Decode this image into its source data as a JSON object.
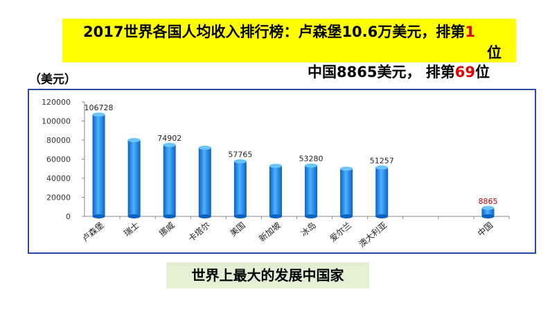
{
  "header": {
    "title_text": "2017世界各国人均收入排行榜：卢森堡10.6万美元，排第",
    "title_rank": "1",
    "title_suffix": "位",
    "china_text": "中国8865美元，  排第",
    "china_rank": "69",
    "china_suffix": "位"
  },
  "unit_label": "（美元）",
  "tagline": "世界上最大的发展中国家",
  "colors": {
    "banner": "#ffff00",
    "rank_red": "#e00000",
    "frame": "#2b4aa8",
    "bar": "#1e90e6",
    "china_label": "#c00000",
    "tagline_bg": "#e4f0d4"
  },
  "chart_data": {
    "type": "bar",
    "categories": [
      "卢森堡",
      "瑞士",
      "挪威",
      "卡塔尔",
      "美国",
      "新加坡",
      "冰岛",
      "爱尔兰",
      "澳大利亚",
      "",
      "",
      "中国"
    ],
    "values": [
      106728,
      80000,
      74902,
      72000,
      57765,
      53000,
      53280,
      50000,
      51257,
      null,
      null,
      8865
    ],
    "data_labels": [
      "106728",
      "",
      "74902",
      "",
      "57765",
      "",
      "53280",
      "",
      "51257",
      "",
      "",
      "8865"
    ],
    "ylim": [
      0,
      120000
    ],
    "yticks": [
      0,
      20000,
      40000,
      60000,
      80000,
      100000,
      120000
    ],
    "ylabel": "（美元）",
    "grid": false,
    "legend": "none"
  }
}
